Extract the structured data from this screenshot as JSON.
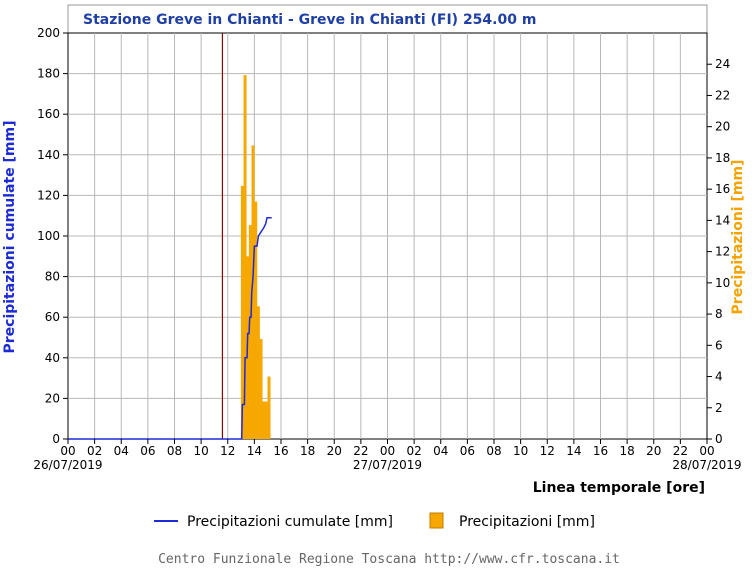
{
  "chart_data": {
    "type": "bar+line",
    "title": "Stazione Greve in Chianti - Greve in Chianti (FI) 254.00 m",
    "xlabel": "Linea temporale [ore]",
    "ylabel_left": "Precipitazioni cumulate [mm]",
    "ylabel_right": "Precipitazioni [mm]",
    "x_range_hours": [
      0,
      48
    ],
    "ylim_left": [
      0,
      200
    ],
    "ylim_right": [
      0,
      26
    ],
    "yticks_left": [
      "0",
      "20",
      "40",
      "60",
      "80",
      "100",
      "120",
      "140",
      "160",
      "180",
      "200"
    ],
    "yticks_right": [
      "0",
      "2",
      "4",
      "6",
      "8",
      "10",
      "12",
      "14",
      "16",
      "18",
      "20",
      "22",
      "24"
    ],
    "xticks": [
      "00",
      "02",
      "04",
      "06",
      "08",
      "10",
      "12",
      "14",
      "16",
      "18",
      "20",
      "22",
      "00",
      "02",
      "04",
      "06",
      "08",
      "10",
      "12",
      "14",
      "16",
      "18",
      "20",
      "22",
      "00"
    ],
    "dates": [
      "26/07/2019",
      "27/07/2019",
      "28/07/2019"
    ],
    "marker_hour": 11.6,
    "grid": true,
    "series": [
      {
        "name": "Precipitazioni cumulate [mm]",
        "kind": "line",
        "axis": "left",
        "color": "#1d2bd6",
        "points": [
          [
            0,
            0
          ],
          [
            13.05,
            0
          ],
          [
            13.1,
            17
          ],
          [
            13.25,
            17
          ],
          [
            13.3,
            40
          ],
          [
            13.45,
            40
          ],
          [
            13.5,
            52
          ],
          [
            13.6,
            52
          ],
          [
            13.65,
            60
          ],
          [
            13.75,
            60
          ],
          [
            13.8,
            72
          ],
          [
            13.9,
            80
          ],
          [
            14.0,
            95
          ],
          [
            14.2,
            95
          ],
          [
            14.3,
            100
          ],
          [
            14.5,
            102
          ],
          [
            14.7,
            104
          ],
          [
            14.85,
            106
          ],
          [
            14.95,
            109
          ],
          [
            15.3,
            109
          ]
        ]
      },
      {
        "name": "Precipitazioni [mm]",
        "kind": "bar",
        "axis": "right",
        "color": "#f5a300",
        "bars": [
          [
            13.1,
            16.2
          ],
          [
            13.3,
            23.3
          ],
          [
            13.5,
            11.7
          ],
          [
            13.7,
            13.7
          ],
          [
            13.9,
            18.8
          ],
          [
            14.1,
            15.2
          ],
          [
            14.3,
            8.5
          ],
          [
            14.5,
            6.4
          ],
          [
            14.7,
            2.4
          ],
          [
            14.9,
            2.4
          ],
          [
            15.1,
            4.0
          ]
        ]
      }
    ],
    "legend_position": "bottom"
  },
  "legend": {
    "line_label": "Precipitazioni cumulate [mm]",
    "bar_label": "Precipitazioni [mm]"
  },
  "footer": "Centro Funzionale Regione Toscana http://www.cfr.toscana.it",
  "colors": {
    "line": "#1d2bd6",
    "bar": "#f5a300",
    "bar_fill": "#f7a800",
    "marker": "#8b0000",
    "grid": "#b8b8b8",
    "title": "#1f3fa5"
  }
}
